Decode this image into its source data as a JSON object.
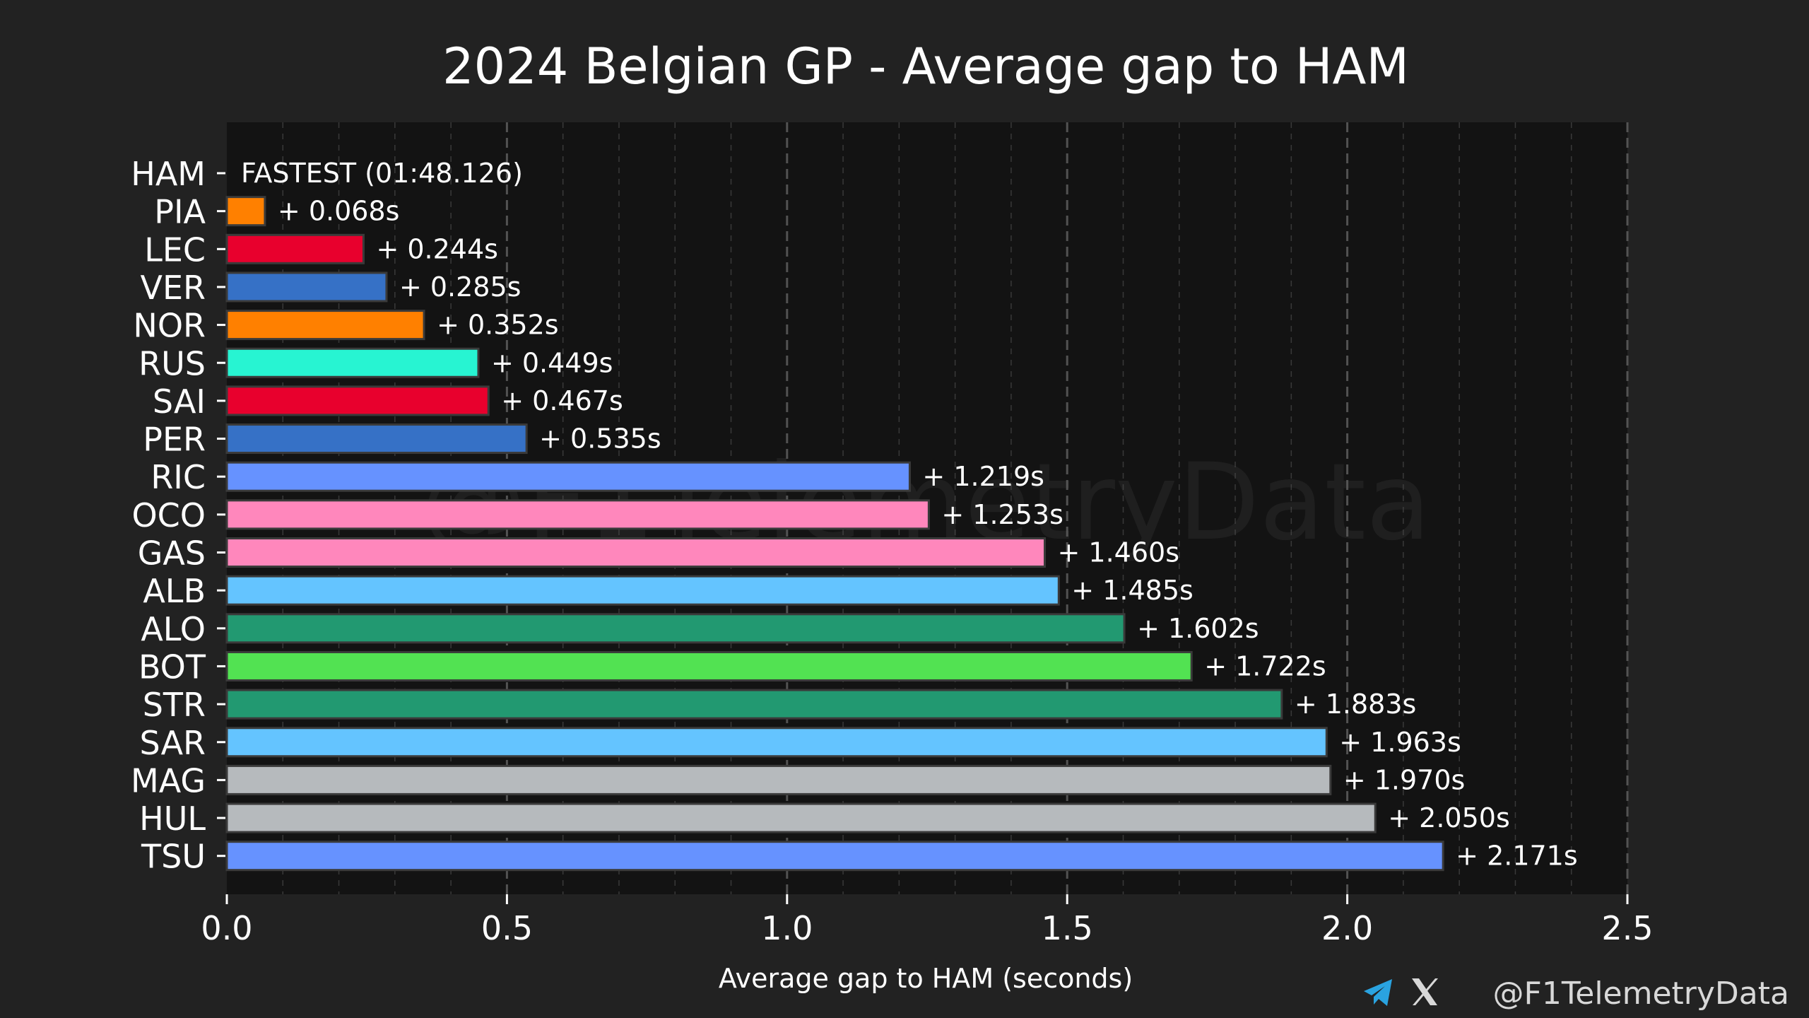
{
  "chart_data": {
    "type": "bar",
    "orientation": "horizontal",
    "title": "2024 Belgian GP - Average gap to HAM",
    "xlabel": "Average gap to HAM (seconds)",
    "ylabel": "",
    "xlim": [
      0,
      2.5
    ],
    "xticks": [
      "0.0",
      "0.5",
      "1.0",
      "1.5",
      "2.0",
      "2.5"
    ],
    "grid": true,
    "categories": [
      "HAM",
      "PIA",
      "LEC",
      "VER",
      "NOR",
      "RUS",
      "SAI",
      "PER",
      "RIC",
      "OCO",
      "GAS",
      "ALB",
      "ALO",
      "BOT",
      "STR",
      "SAR",
      "MAG",
      "HUL",
      "TSU"
    ],
    "values": [
      0,
      0.068,
      0.244,
      0.285,
      0.352,
      0.449,
      0.467,
      0.535,
      1.219,
      1.253,
      1.46,
      1.485,
      1.602,
      1.722,
      1.883,
      1.963,
      1.97,
      2.05,
      2.171
    ],
    "labels": [
      "FASTEST (01:48.126)",
      "+ 0.068s",
      "+ 0.244s",
      "+ 0.285s",
      "+ 0.352s",
      "+ 0.449s",
      "+ 0.467s",
      "+ 0.535s",
      "+ 1.219s",
      "+ 1.253s",
      "+ 1.460s",
      "+ 1.485s",
      "+ 1.602s",
      "+ 1.722s",
      "+ 1.883s",
      "+ 1.963s",
      "+ 1.970s",
      "+ 2.050s",
      "+ 2.171s"
    ],
    "colors": [
      "#27f4d2",
      "#ff8000",
      "#e8002d",
      "#3671c6",
      "#ff8000",
      "#27f4d2",
      "#e8002d",
      "#3671c6",
      "#6692ff",
      "#ff87bc",
      "#ff87bc",
      "#64c4ff",
      "#229971",
      "#52e252",
      "#229971",
      "#64c4ff",
      "#b6babd",
      "#b6babd",
      "#6692ff"
    ]
  },
  "watermark": "@F1TelemetryData",
  "credit": {
    "handle": "@F1TelemetryData",
    "icons": [
      "telegram-icon",
      "x-icon"
    ]
  },
  "theme": {
    "background": "#222222",
    "plot_background": "#131313",
    "grid_color": "#5a5a5a",
    "text_color": "#ffffff"
  }
}
